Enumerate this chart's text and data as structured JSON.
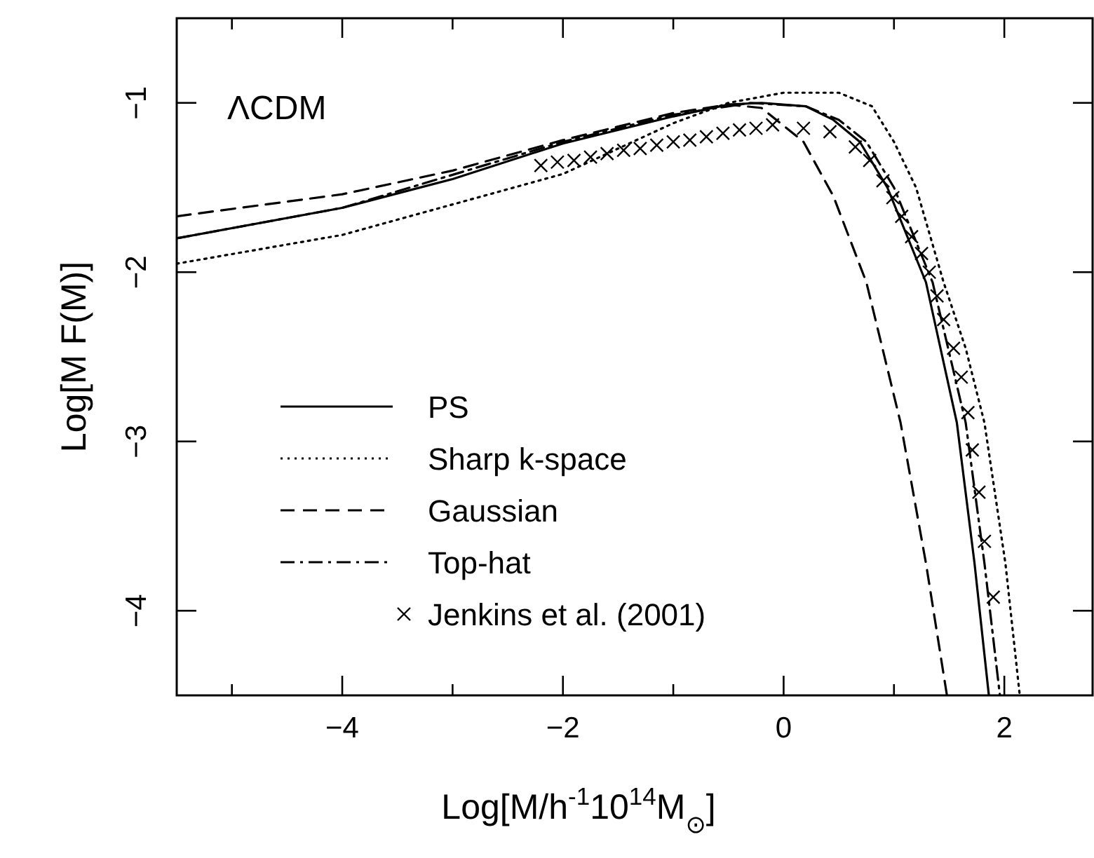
{
  "chart_data": {
    "type": "line",
    "xlabel": "Log[M/h$^{-1}$10$^{14}$M$_{⊙}$]",
    "ylabel": "Log[M F(M)]",
    "annotations": [
      "ΛCDM"
    ],
    "xlim": [
      -5.5,
      2.8
    ],
    "ylim": [
      -4.5,
      -0.5
    ],
    "xticks": [
      {
        "value": -5,
        "label": null
      },
      -4,
      {
        "value": -3,
        "label": null
      },
      -2,
      {
        "value": -1,
        "label": null
      },
      0,
      {
        "value": 1,
        "label": null
      },
      2
    ],
    "yticks": [
      -4,
      -3,
      -2,
      -1
    ],
    "grid": false,
    "legend": "bottom left",
    "series": [
      {
        "name": "PS",
        "color": "#000000",
        "line_style": "solid",
        "x": [
          -5.5,
          -4,
          -3,
          -2,
          -1,
          -0.5,
          -0.2,
          0.2,
          0.45,
          0.69,
          0.94,
          1.29,
          1.57,
          1.73,
          1.86
        ],
        "values": [
          -1.8,
          -1.62,
          -1.45,
          -1.24,
          -1.08,
          -1.01,
          -1.0,
          -1.02,
          -1.1,
          -1.23,
          -1.5,
          -2.06,
          -2.89,
          -3.72,
          -4.5
        ]
      },
      {
        "name": "Sharp k-space",
        "color": "#000000",
        "line_style": "dotted",
        "x": [
          -5.5,
          -4,
          -3,
          -2,
          -1,
          -0.5,
          0,
          0.5,
          0.8,
          1.0,
          1.2,
          1.45,
          1.65,
          1.82,
          2.01,
          2.14
        ],
        "values": [
          -1.95,
          -1.78,
          -1.6,
          -1.42,
          -1.12,
          -1.0,
          -0.94,
          -0.94,
          -1.02,
          -1.23,
          -1.5,
          -2.06,
          -2.45,
          -2.89,
          -3.72,
          -4.5
        ]
      },
      {
        "name": "Gaussian",
        "color": "#000000",
        "line_style": "dashed",
        "x": [
          -5.5,
          -4,
          -3,
          -2,
          -1,
          -0.5,
          -0.2,
          0.18,
          0.45,
          0.75,
          1.06,
          1.29,
          1.48
        ],
        "values": [
          -1.67,
          -1.54,
          -1.4,
          -1.22,
          -1.06,
          -1.01,
          -1.03,
          -1.23,
          -1.55,
          -2.06,
          -2.89,
          -3.72,
          -4.5
        ]
      },
      {
        "name": "Top-hat",
        "color": "#000000",
        "line_style": "dashdot",
        "x": [
          -5.5,
          -4,
          -2,
          -1,
          -0.3,
          0.2,
          0.5,
          0.75,
          1.0,
          1.35,
          1.65,
          1.82,
          1.96
        ],
        "values": [
          -1.8,
          -1.62,
          -1.23,
          -1.07,
          -1.0,
          -1.02,
          -1.1,
          -1.23,
          -1.5,
          -2.06,
          -2.89,
          -3.72,
          -4.5
        ]
      },
      {
        "name": "Jenkins et al. (2001)",
        "color": "#000000",
        "type": "scatter",
        "marker": "cross",
        "x": [
          -2.2,
          -2.05,
          -1.9,
          -1.75,
          -1.6,
          -1.45,
          -1.3,
          -1.15,
          -1.0,
          -0.85,
          -0.7,
          -0.55,
          -0.4,
          -0.25,
          -0.1,
          0.18,
          0.42,
          0.65,
          0.78,
          0.9,
          0.99,
          1.07,
          1.16,
          1.25,
          1.32,
          1.39,
          1.45,
          1.54,
          1.61,
          1.67,
          1.71,
          1.77,
          1.82,
          1.9
        ],
        "values": [
          -1.37,
          -1.35,
          -1.34,
          -1.32,
          -1.3,
          -1.28,
          -1.27,
          -1.25,
          -1.23,
          -1.22,
          -1.2,
          -1.18,
          -1.16,
          -1.15,
          -1.13,
          -1.15,
          -1.17,
          -1.26,
          -1.34,
          -1.46,
          -1.56,
          -1.67,
          -1.79,
          -1.89,
          -2.0,
          -2.14,
          -2.28,
          -2.45,
          -2.62,
          -2.83,
          -3.05,
          -3.3,
          -3.59,
          -3.92
        ]
      }
    ]
  }
}
